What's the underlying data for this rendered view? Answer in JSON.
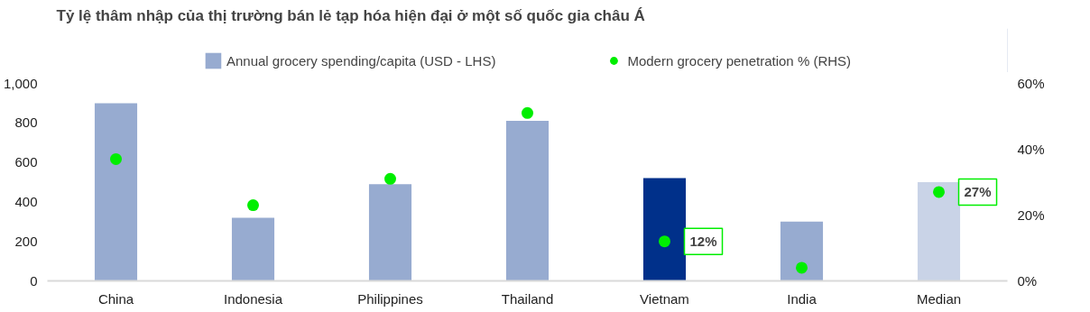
{
  "chart_data": {
    "type": "bar",
    "title": "Tỷ lệ thâm nhập của thị trường bán lẻ tạp hóa hiện đại ở một số quốc gia châu Á",
    "categories": [
      "China",
      "Indonesia",
      "Philippines",
      "Thailand",
      "Vietnam",
      "India",
      "Median"
    ],
    "ylim": [
      0,
      1000
    ],
    "yticks": [
      0,
      200,
      400,
      600,
      800,
      {
        "value": 1000,
        "label": "1,000"
      }
    ],
    "y2lim": [
      0,
      60
    ],
    "y2ticks": [
      {
        "value": 0,
        "label": "0%"
      },
      {
        "value": 20,
        "label": "20%"
      },
      {
        "value": 40,
        "label": "40%"
      },
      {
        "value": 60,
        "label": "60%"
      }
    ],
    "legend": "top",
    "grid": false,
    "series": [
      {
        "name": "Annual grocery spending/capita (USD - LHS)",
        "colors": [
          "#97abd0",
          "#97abd0",
          "#97abd0",
          "#97abd0",
          "#00308a",
          "#97abd0",
          "#c9d3e7"
        ],
        "values": [
          900,
          320,
          490,
          810,
          520,
          300,
          500
        ]
      },
      {
        "name": "Modern grocery penetration % (RHS)",
        "type": "scatter",
        "axis": "y2",
        "marker": "circle",
        "color": "#00ee00",
        "values": [
          37,
          23,
          31,
          51,
          12,
          4,
          27
        ],
        "value_labels": [
          null,
          null,
          null,
          null,
          "12%",
          null,
          "27%"
        ]
      }
    ]
  }
}
